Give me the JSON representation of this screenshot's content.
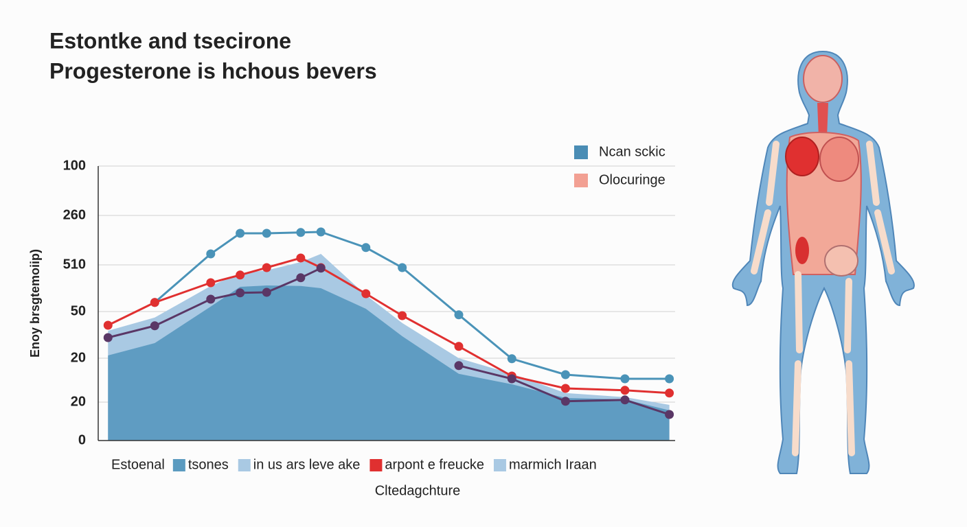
{
  "chart_data": {
    "type": "line",
    "title": [
      "Estontke and tsecirone",
      "Progesterone is hchous bevers"
    ],
    "y_label": "Enoy brsgtemoiip)",
    "x_label": "Cltedagchture",
    "xlim": [
      0,
      100
    ],
    "ylim": [
      0,
      100
    ],
    "yticks": [
      0,
      {
        "value": 14,
        "label": "20"
      },
      {
        "value": 30,
        "label": "20"
      },
      {
        "value": 47,
        "label": "50"
      },
      {
        "value": 64,
        "label": "510"
      },
      {
        "value": 82,
        "label": "260"
      },
      100
    ],
    "grid": true,
    "x": [
      1.7,
      9.8,
      19.5,
      24.6,
      29.2,
      35.1,
      38.6,
      46.4,
      52.7,
      62.5,
      71.7,
      81,
      91.3,
      99
    ],
    "series": [
      {
        "kind": "area",
        "color": "#a9c9e3",
        "values": [
          40,
          44.8,
          56.3,
          61,
          62,
          65,
          68,
          53,
          42.8,
          30,
          24.3,
          17.3,
          15.8,
          13
        ]
      },
      {
        "kind": "area",
        "color": "#5f9cc2",
        "values": [
          31,
          35.5,
          48.8,
          56,
          56.5,
          56.3,
          55.5,
          48,
          38,
          24.3,
          20.5,
          15.5,
          15,
          11
        ]
      },
      {
        "kind": "line",
        "color": "#4a93b8",
        "values": [
          null,
          50.3,
          68,
          75.5,
          75.5,
          75.8,
          76,
          70.3,
          63,
          45.8,
          29.8,
          24,
          22.5,
          22.5
        ]
      },
      {
        "kind": "line",
        "color": "#e03030",
        "values": [
          42,
          50.3,
          57.5,
          60.3,
          63,
          66.5,
          63,
          53.5,
          45.5,
          34.3,
          23.5,
          19,
          18.3,
          17.3
        ]
      },
      {
        "kind": "line",
        "color": "#5a3766",
        "values": [
          37.5,
          41.8,
          51.5,
          53.8,
          54,
          59.3,
          62.8,
          null,
          null,
          27.3,
          22.5,
          14.3,
          14.8,
          9.5
        ]
      }
    ],
    "legend_top": [
      {
        "label": "Ncan sckic",
        "color": "#4a8db5"
      },
      {
        "label": "Olocuringe",
        "color": "#f2a093"
      }
    ],
    "legend_bottom": {
      "title": "Estoenal",
      "items": [
        {
          "label": "tsones",
          "color": "#5b9bc0"
        },
        {
          "label": "in us ars leve ake",
          "color": "#a9c9e3"
        },
        {
          "label": "arpont e freucke",
          "color": "#e03030"
        },
        {
          "label": "marmich Iraan",
          "color": "#a9c9e3"
        }
      ]
    }
  }
}
